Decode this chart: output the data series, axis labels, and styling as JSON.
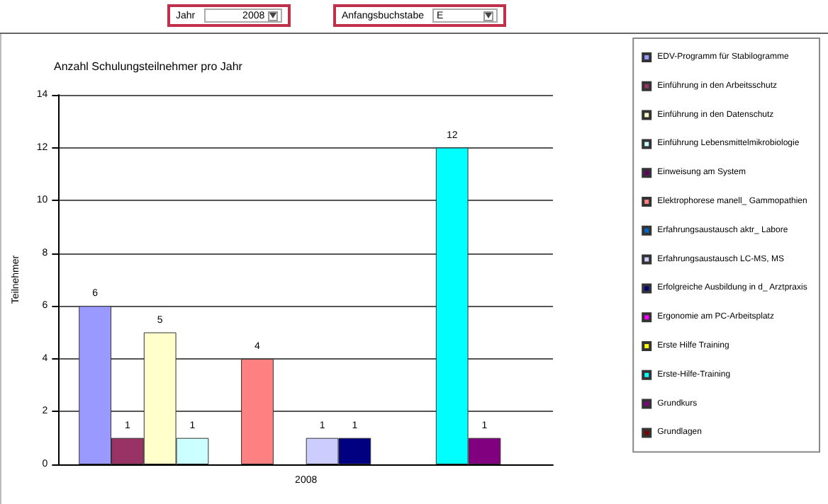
{
  "chart_data": {
    "type": "bar",
    "title": "Anzahl Schulungsteilnehmer pro Jahr",
    "ylabel": "Teilnehmer",
    "annotations": [
      "Jahr",
      "2008",
      "Anfangsbuchstabe",
      "E"
    ],
    "categories": [
      "2008"
    ],
    "series": [
      {
        "name": "EDV-Programm für Stabilogramme",
        "color": "#9999ff",
        "values": [
          6
        ]
      },
      {
        "name": "Einführung in den Arbeitsschutz",
        "color": "#993366",
        "values": [
          1
        ]
      },
      {
        "name": "Einführung in den Datenschutz",
        "color": "#ffffcc",
        "values": [
          5
        ]
      },
      {
        "name": "Einführung Lebensmittelmikrobiologie",
        "color": "#ccffff",
        "values": [
          1
        ]
      },
      {
        "name": "Einweisung am System",
        "color": "#660066",
        "values": [
          null
        ]
      },
      {
        "name": "Elektrophorese manell_ Gammopathien",
        "color": "#ff8080",
        "values": [
          4
        ]
      },
      {
        "name": "Erfahrungsaustausch aktr_ Labore",
        "color": "#0066cc",
        "values": [
          null
        ]
      },
      {
        "name": "Erfahrungsaustausch LC-MS, MS",
        "color": "#ccccff",
        "values": [
          1
        ]
      },
      {
        "name": "Erfolgreiche Ausbildung in d_ Arztpraxis",
        "color": "#000080",
        "values": [
          1
        ]
      },
      {
        "name": "Ergonomie am PC-Arbeitsplatz",
        "color": "#ff00ff",
        "values": [
          null
        ]
      },
      {
        "name": "Erste Hilfe Training",
        "color": "#ffff00",
        "values": [
          null
        ]
      },
      {
        "name": "Erste-Hilfe-Training",
        "color": "#00ffff",
        "values": [
          12
        ]
      },
      {
        "name": "Grundkurs",
        "color": "#800080",
        "values": [
          1
        ]
      },
      {
        "name": "Grundlagen",
        "color": "#800000",
        "values": [
          null
        ]
      }
    ],
    "ylim": [
      0,
      14
    ],
    "yticks": [
      0,
      2,
      4,
      6,
      8,
      10,
      12,
      14
    ],
    "grid": "y",
    "legend": "right",
    "data_labels": true
  }
}
